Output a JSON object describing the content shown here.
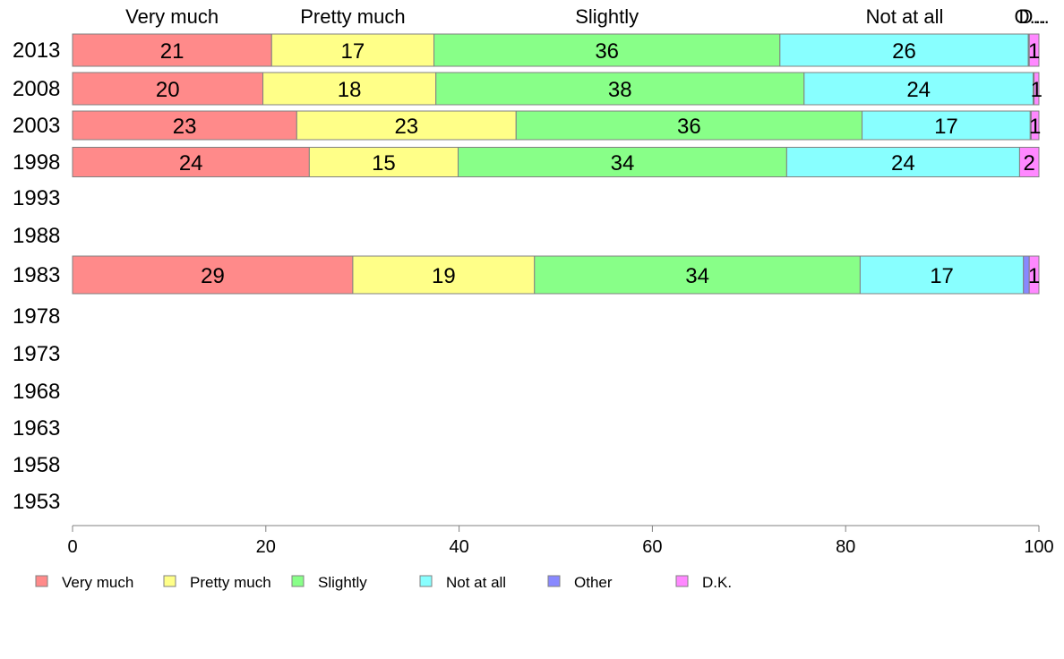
{
  "chart_data": {
    "type": "bar",
    "orientation": "horizontal",
    "stacked": true,
    "categories": [
      "2013",
      "2008",
      "2003",
      "1998",
      "1993",
      "1988",
      "1983",
      "1978",
      "1973",
      "1968",
      "1963",
      "1958",
      "1953"
    ],
    "series": [
      {
        "name": "Very much",
        "color": "#ff8a8a",
        "values": [
          20.6,
          19.7,
          23.2,
          24.5,
          null,
          null,
          29.0,
          null,
          null,
          null,
          null,
          null,
          null
        ],
        "labels": [
          "21",
          "20",
          "23",
          "24",
          "",
          "",
          "29",
          "",
          "",
          "",
          "",
          "",
          ""
        ]
      },
      {
        "name": "Pretty much",
        "color": "#ffff88",
        "values": [
          16.8,
          17.9,
          22.7,
          15.4,
          null,
          null,
          18.8,
          null,
          null,
          null,
          null,
          null,
          null
        ],
        "labels": [
          "17",
          "18",
          "23",
          "15",
          "",
          "",
          "19",
          "",
          "",
          "",
          "",
          "",
          ""
        ]
      },
      {
        "name": "Slightly",
        "color": "#88ff88",
        "values": [
          35.8,
          38.1,
          35.8,
          34.0,
          null,
          null,
          33.7,
          null,
          null,
          null,
          null,
          null,
          null
        ],
        "labels": [
          "36",
          "38",
          "36",
          "34",
          "",
          "",
          "34",
          "",
          "",
          "",
          "",
          "",
          ""
        ]
      },
      {
        "name": "Not at all",
        "color": "#88ffff",
        "values": [
          25.7,
          23.7,
          17.4,
          24.1,
          null,
          null,
          16.9,
          null,
          null,
          null,
          null,
          null,
          null
        ],
        "labels": [
          "26",
          "24",
          "17",
          "24",
          "",
          "",
          "17",
          "",
          "",
          "",
          "",
          "",
          ""
        ]
      },
      {
        "name": "Other",
        "color": "#8888ff",
        "values": [
          0.1,
          0.1,
          0.1,
          0.0,
          null,
          null,
          0.6,
          null,
          null,
          null,
          null,
          null,
          null
        ],
        "labels": [
          "",
          "",
          "",
          "",
          "",
          "",
          "",
          "",
          "",
          "",
          "",
          "",
          ""
        ]
      },
      {
        "name": "D.K.",
        "color": "#ff88ff",
        "values": [
          1.0,
          0.5,
          0.8,
          2.0,
          null,
          null,
          1.0,
          null,
          null,
          null,
          null,
          null,
          null
        ],
        "labels": [
          "1",
          "1",
          "1",
          "2",
          "",
          "",
          "1",
          "",
          "",
          "",
          "",
          "",
          ""
        ]
      }
    ],
    "top_labels": [
      {
        "text": "Very much",
        "x": 10.3
      },
      {
        "text": "Pretty much",
        "x": 29.0
      },
      {
        "text": "Slightly",
        "x": 55.3
      },
      {
        "text": "Not at all",
        "x": 86.1
      },
      {
        "text": "O...",
        "x": 99.1
      },
      {
        "text": "D...",
        "x": 99.5
      }
    ],
    "xlim": [
      0,
      100
    ],
    "xticks": [
      "0",
      "20",
      "40",
      "60",
      "80",
      "100"
    ],
    "legend": {
      "position": "bottom",
      "entries": [
        "Very much",
        "Pretty much",
        "Slightly",
        "Not at all",
        "Other",
        "D.K."
      ]
    },
    "grid": false
  }
}
